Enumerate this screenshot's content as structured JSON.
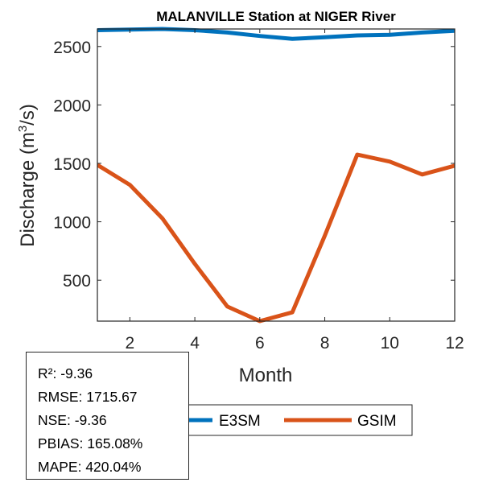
{
  "chart_data": {
    "type": "line",
    "title": "MALANVILLE  Station at  NIGER  River",
    "xlabel": "Month",
    "ylabel": "Discharge (m³/s)",
    "ylabel_parts": {
      "prefix": "Discharge (m",
      "sup": "3",
      "suffix": "/s)"
    },
    "x": [
      1,
      2,
      3,
      4,
      5,
      6,
      7,
      8,
      9,
      10,
      11,
      12
    ],
    "xlim": [
      1,
      12
    ],
    "ylim": [
      150,
      2650
    ],
    "xticks": [
      2,
      4,
      6,
      8,
      10,
      12
    ],
    "yticks": [
      500,
      1000,
      1500,
      2000,
      2500
    ],
    "xtick_labels": [
      "2",
      "4",
      "6",
      "8",
      "10",
      "12"
    ],
    "ytick_labels": [
      "500",
      "1000",
      "1500",
      "2000",
      "2500"
    ],
    "grid": false,
    "legend_position": "bottom-outside",
    "series": [
      {
        "name": "E3SM",
        "color": "#0072BD",
        "values": [
          2640,
          2645,
          2650,
          2640,
          2620,
          2590,
          2565,
          2580,
          2595,
          2600,
          2620,
          2635
        ]
      },
      {
        "name": "GSIM",
        "color": "#D95319",
        "values": [
          1487,
          1315,
          1030,
          640,
          275,
          150,
          225,
          880,
          1575,
          1515,
          1405,
          1480
        ]
      }
    ]
  },
  "stats": {
    "lines": [
      "R²: -9.36",
      "RMSE: 1715.67",
      "NSE: -9.36",
      "PBIAS: 165.08%",
      "MAPE: 420.04%"
    ]
  }
}
